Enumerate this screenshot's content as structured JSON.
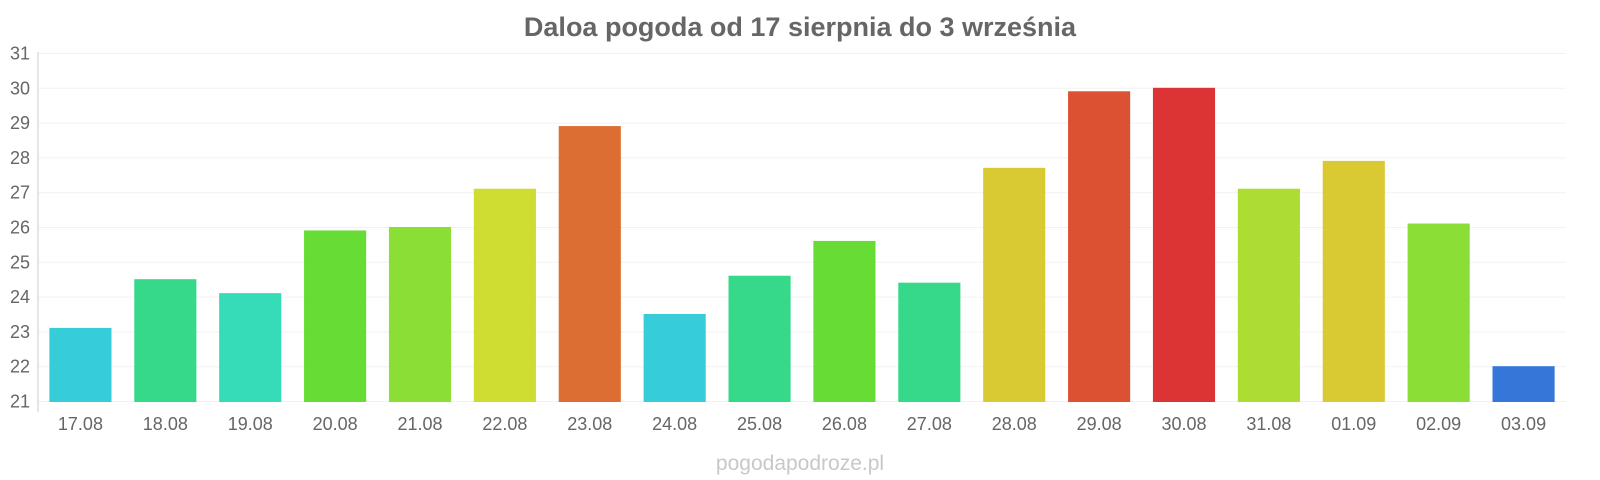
{
  "chart_data": {
    "type": "bar",
    "title": "Daloa pogoda od 17 sierpnia do 3 września",
    "xlabel": "",
    "ylabel": "",
    "ylim": [
      21,
      31
    ],
    "yticks": [
      "21",
      "22",
      "23",
      "24",
      "25",
      "26",
      "27",
      "28",
      "29",
      "30",
      "31"
    ],
    "grid": true,
    "categories": [
      "17.08",
      "18.08",
      "19.08",
      "20.08",
      "21.08",
      "22.08",
      "23.08",
      "24.08",
      "25.08",
      "26.08",
      "27.08",
      "28.08",
      "29.08",
      "30.08",
      "31.08",
      "01.09",
      "02.09",
      "03.09"
    ],
    "values": [
      23.1,
      24.5,
      24.1,
      25.9,
      26.0,
      27.1,
      28.9,
      23.5,
      24.6,
      25.6,
      24.4,
      27.7,
      29.9,
      30.0,
      27.1,
      27.9,
      26.1,
      22.0
    ],
    "colors": [
      "#36cdd9",
      "#36d98a",
      "#36dbb8",
      "#66dc34",
      "#8ade36",
      "#cfdc32",
      "#dd6e33",
      "#36cdd9",
      "#36d98a",
      "#66dc34",
      "#36d98a",
      "#d9c932",
      "#dd5133",
      "#dc3434",
      "#addd32",
      "#d9c932",
      "#8ade36",
      "#3477d9"
    ]
  },
  "watermark": "pogodapodroze.pl"
}
